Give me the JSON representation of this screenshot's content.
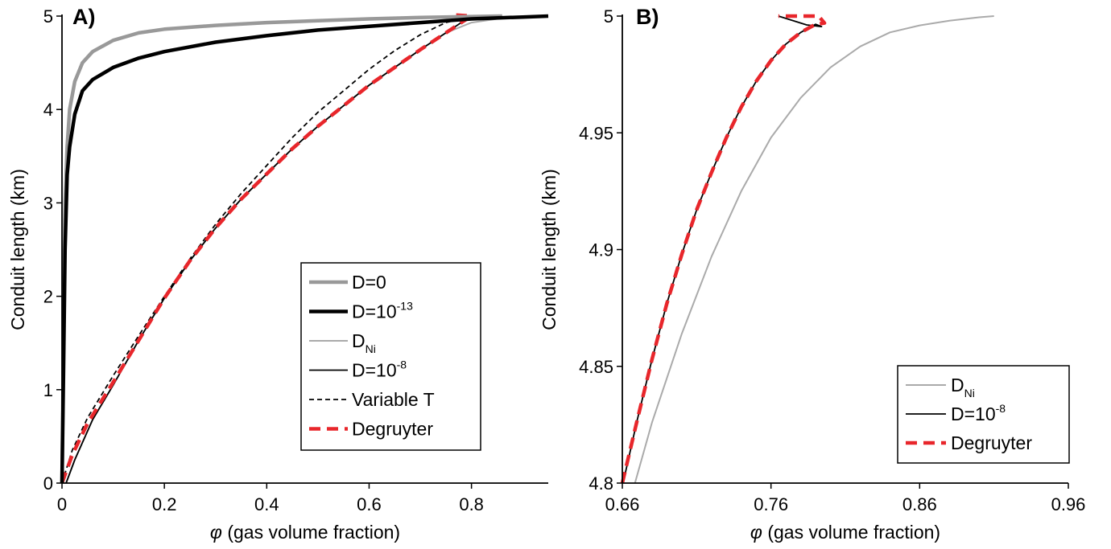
{
  "figure": {
    "colors": {
      "gray_thick": "#999999",
      "black": "#000000",
      "gray_thin": "#aaaaaa",
      "red": "#e8262b"
    }
  },
  "chart_data": [
    {
      "type": "line",
      "panel_label": "A)",
      "xlabel_symbol": "φ",
      "xlabel": " (gas volume fraction)",
      "ylabel": "Conduit length (km)",
      "xlim": [
        0,
        0.95
      ],
      "ylim": [
        0,
        5
      ],
      "xticks": [
        0,
        0.2,
        0.4,
        0.6,
        0.8
      ],
      "xtick_labels": [
        "0",
        "0.2",
        "0.4",
        "0.6",
        "0.8"
      ],
      "yticks": [
        0,
        1,
        2,
        3,
        4,
        5
      ],
      "ytick_labels": [
        "0",
        "1",
        "2",
        "3",
        "4",
        "5"
      ],
      "legend_position": "bottom-right",
      "legend": [
        {
          "key": "d0",
          "text": "D=0",
          "sup": "",
          "sub": ""
        },
        {
          "key": "d13",
          "text": "D=10",
          "sup": "-13",
          "sub": ""
        },
        {
          "key": "dni",
          "text": "D",
          "sup": "",
          "sub": "Ni"
        },
        {
          "key": "d8",
          "text": "D=10",
          "sup": "-8",
          "sub": ""
        },
        {
          "key": "vt",
          "text": "Variable T",
          "sup": "",
          "sub": ""
        },
        {
          "key": "deg",
          "text": "Degruyter",
          "sup": "",
          "sub": ""
        }
      ],
      "series": [
        {
          "key": "dni",
          "style": "thin_gray",
          "x": [
            0.008,
            0.025,
            0.06,
            0.1,
            0.15,
            0.2,
            0.25,
            0.3,
            0.35,
            0.4,
            0.45,
            0.5,
            0.55,
            0.6,
            0.65,
            0.7,
            0.75,
            0.8,
            0.85,
            0.9,
            0.95
          ],
          "y": [
            0,
            0.25,
            0.68,
            1.05,
            1.53,
            1.98,
            2.38,
            2.73,
            3.04,
            3.31,
            3.58,
            3.82,
            4.04,
            4.26,
            4.45,
            4.64,
            4.82,
            4.93,
            4.97,
            4.99,
            5.0
          ]
        },
        {
          "key": "d8",
          "style": "thin_black",
          "x": [
            0.008,
            0.025,
            0.06,
            0.1,
            0.15,
            0.2,
            0.25,
            0.3,
            0.35,
            0.4,
            0.45,
            0.5,
            0.55,
            0.6,
            0.65,
            0.7,
            0.75,
            0.78,
            0.8,
            0.79
          ],
          "y": [
            0,
            0.25,
            0.68,
            1.05,
            1.53,
            1.98,
            2.38,
            2.73,
            3.04,
            3.31,
            3.58,
            3.82,
            4.04,
            4.26,
            4.45,
            4.64,
            4.82,
            4.93,
            4.99,
            5.0
          ]
        },
        {
          "key": "vt",
          "style": "dashed_black",
          "x": [
            0.0,
            0.02,
            0.05,
            0.1,
            0.15,
            0.2,
            0.25,
            0.3,
            0.35,
            0.4,
            0.45,
            0.5,
            0.55,
            0.6,
            0.65,
            0.7,
            0.75,
            0.8
          ],
          "y": [
            0,
            0.35,
            0.7,
            1.15,
            1.58,
            2.0,
            2.4,
            2.77,
            3.1,
            3.4,
            3.7,
            3.97,
            4.2,
            4.43,
            4.63,
            4.8,
            4.93,
            5.0
          ]
        },
        {
          "key": "deg",
          "style": "dashed_red",
          "x": [
            0.0,
            0.02,
            0.05,
            0.1,
            0.15,
            0.2,
            0.25,
            0.3,
            0.35,
            0.4,
            0.45,
            0.5,
            0.55,
            0.6,
            0.65,
            0.7,
            0.75,
            0.78,
            0.8,
            0.77
          ],
          "y": [
            0,
            0.3,
            0.64,
            1.08,
            1.53,
            1.98,
            2.38,
            2.73,
            3.04,
            3.31,
            3.58,
            3.82,
            4.04,
            4.26,
            4.45,
            4.64,
            4.82,
            4.93,
            5.0,
            5.01
          ]
        },
        {
          "key": "d0",
          "style": "thick_gray",
          "x": [
            0.0,
            0.003,
            0.006,
            0.01,
            0.015,
            0.025,
            0.04,
            0.06,
            0.1,
            0.15,
            0.2,
            0.3,
            0.4,
            0.5,
            0.6,
            0.7,
            0.8,
            0.86
          ],
          "y": [
            0,
            1.5,
            3.0,
            3.6,
            4.0,
            4.3,
            4.5,
            4.62,
            4.74,
            4.82,
            4.86,
            4.9,
            4.93,
            4.95,
            4.97,
            4.985,
            4.995,
            5.0
          ]
        },
        {
          "key": "d13",
          "style": "thick_black",
          "x": [
            0.0,
            0.003,
            0.006,
            0.01,
            0.015,
            0.025,
            0.04,
            0.06,
            0.1,
            0.15,
            0.2,
            0.3,
            0.4,
            0.5,
            0.6,
            0.7,
            0.8,
            0.9,
            0.95
          ],
          "y": [
            0,
            1.2,
            2.5,
            3.3,
            3.6,
            3.95,
            4.2,
            4.32,
            4.45,
            4.55,
            4.62,
            4.72,
            4.79,
            4.85,
            4.89,
            4.93,
            4.97,
            4.99,
            5.0
          ]
        }
      ]
    },
    {
      "type": "line",
      "panel_label": "B)",
      "xlabel_symbol": "φ",
      "xlabel": " (gas volume fraction)",
      "ylabel": "Conduit length (km)",
      "xlim": [
        0.66,
        0.96
      ],
      "ylim": [
        4.8,
        5.0
      ],
      "xticks": [
        0.66,
        0.76,
        0.86,
        0.96
      ],
      "xtick_labels": [
        "0.66",
        "0.76",
        "0.86",
        "0.96"
      ],
      "yticks": [
        4.8,
        4.85,
        4.9,
        4.95,
        5.0
      ],
      "ytick_labels": [
        "4.8",
        "4.85",
        "4.9",
        "4.95",
        "5"
      ],
      "legend_position": "bottom-right",
      "legend": [
        {
          "key": "dni",
          "text": "D",
          "sup": "",
          "sub": "Ni"
        },
        {
          "key": "d8",
          "text": "D=10",
          "sup": "-8",
          "sub": ""
        },
        {
          "key": "deg",
          "text": "Degruyter",
          "sup": "",
          "sub": ""
        }
      ],
      "series": [
        {
          "key": "dni",
          "style": "thin_gray",
          "x": [
            0.6685,
            0.68,
            0.7,
            0.72,
            0.74,
            0.76,
            0.78,
            0.8,
            0.82,
            0.84,
            0.86,
            0.88,
            0.9,
            0.91
          ],
          "y": [
            4.8,
            4.826,
            4.864,
            4.897,
            4.925,
            4.948,
            4.965,
            4.978,
            4.987,
            4.993,
            4.996,
            4.998,
            4.9995,
            5.0
          ]
        },
        {
          "key": "d8",
          "style": "thin_black",
          "x": [
            0.6605,
            0.67,
            0.68,
            0.69,
            0.7,
            0.71,
            0.72,
            0.73,
            0.74,
            0.75,
            0.76,
            0.77,
            0.78,
            0.79,
            0.794,
            0.784,
            0.765
          ],
          "y": [
            4.8,
            4.827,
            4.853,
            4.877,
            4.898,
            4.917,
            4.933,
            4.948,
            4.961,
            4.972,
            4.981,
            4.988,
            4.993,
            4.9965,
            4.9955,
            4.9962,
            5.0
          ]
        },
        {
          "key": "deg",
          "style": "dashed_red",
          "x": [
            0.66,
            0.67,
            0.68,
            0.69,
            0.7,
            0.71,
            0.72,
            0.73,
            0.74,
            0.75,
            0.76,
            0.77,
            0.78,
            0.79,
            0.796,
            0.792,
            0.765
          ],
          "y": [
            4.8,
            4.827,
            4.853,
            4.877,
            4.898,
            4.917,
            4.933,
            4.948,
            4.961,
            4.972,
            4.981,
            4.988,
            4.993,
            4.9965,
            4.997,
            5.0,
            5.0
          ]
        }
      ]
    }
  ]
}
